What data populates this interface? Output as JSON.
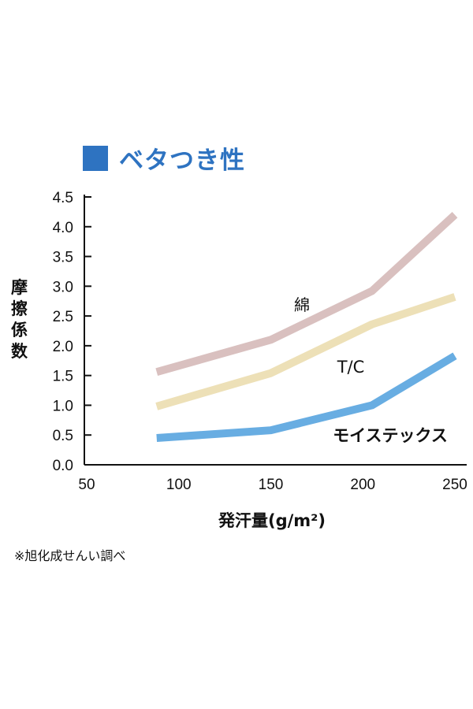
{
  "chart_data": {
    "type": "line",
    "title": "ベタつき性",
    "xlabel": "発汗量(g/m²)",
    "ylabel": "摩擦係数",
    "xlim": [
      50,
      250
    ],
    "ylim": [
      0,
      4.5
    ],
    "x_ticks": [
      "50",
      "100",
      "150",
      "200",
      "250"
    ],
    "y_ticks": [
      "0.0",
      "0.5",
      "1.0",
      "1.5",
      "2.0",
      "2.5",
      "3.0",
      "3.5",
      "4.0",
      "4.5"
    ],
    "x": [
      88,
      150,
      205,
      250
    ],
    "grid": false,
    "series": [
      {
        "name": "綿",
        "values": [
          1.56,
          2.1,
          2.92,
          4.2
        ],
        "color": "#d9c0bf"
      },
      {
        "name": "T/C",
        "values": [
          0.98,
          1.54,
          2.36,
          2.82
        ],
        "color": "#ede0b7"
      },
      {
        "name": "モイステックス",
        "values": [
          0.45,
          0.58,
          1.0,
          1.83
        ],
        "color": "#68ade2"
      }
    ]
  },
  "note": "※旭化成せんい調べ"
}
